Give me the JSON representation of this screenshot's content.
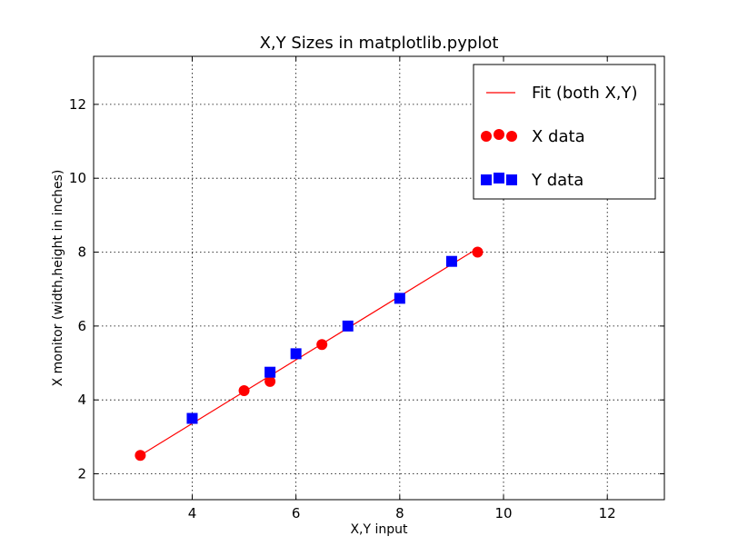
{
  "chart_data": {
    "type": "scatter",
    "title": "X,Y Sizes in matplotlib.pyplot",
    "xlabel": "X,Y input",
    "ylabel": "X monitor (width,height in inches)",
    "xlim": [
      2.1,
      13.1
    ],
    "ylim": [
      1.3,
      13.3
    ],
    "xticks": [
      4,
      6,
      8,
      10,
      12
    ],
    "yticks": [
      2,
      4,
      6,
      8,
      10,
      12
    ],
    "grid": true,
    "legend_position": "top-right",
    "series": [
      {
        "name": "Fit (both X,Y)",
        "kind": "line",
        "color": "#ff0000",
        "x": [
          3.0,
          9.5
        ],
        "y": [
          2.5,
          8.1
        ]
      },
      {
        "name": "X data",
        "kind": "circle",
        "color": "#ff0000",
        "x": [
          3.0,
          5.0,
          5.5,
          6.5,
          9.5
        ],
        "y": [
          2.5,
          4.25,
          4.5,
          5.5,
          8.0
        ]
      },
      {
        "name": "Y data",
        "kind": "square",
        "color": "#0000ff",
        "x": [
          4.0,
          5.5,
          6.0,
          7.0,
          8.0,
          9.0
        ],
        "y": [
          3.5,
          4.75,
          5.25,
          6.0,
          6.75,
          7.75
        ]
      }
    ]
  }
}
